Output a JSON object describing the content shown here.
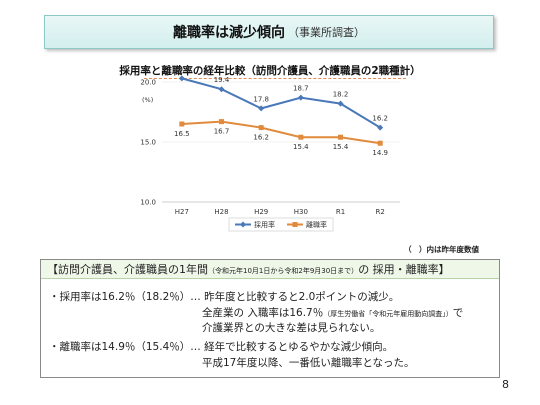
{
  "title": {
    "main": "離職率は減少傾向",
    "sub": "（事業所調査）"
  },
  "chart_title": "採用率と離職率の経年比較（訪問介護員、介護職員の2職種計）",
  "chart_data": {
    "type": "line",
    "categories": [
      "H27",
      "H28",
      "H29",
      "H30",
      "R1",
      "R2"
    ],
    "ylabel": "(%)",
    "ylim": [
      10,
      20
    ],
    "yticks": [
      "10.0",
      "15.0",
      "20.0"
    ],
    "series": [
      {
        "name": "採用率",
        "color": "#4a78b8",
        "values": [
          20.3,
          19.4,
          17.8,
          18.7,
          18.2,
          16.2
        ]
      },
      {
        "name": "離職率",
        "color": "#e08a3c",
        "values": [
          16.5,
          16.7,
          16.2,
          15.4,
          15.4,
          14.9
        ]
      }
    ],
    "legend": "bottom"
  },
  "note": "（　）内は昨年度数値",
  "panel": {
    "header_a": "【訪問介護員、介護職員の1年間",
    "header_small": "（令和元年10月1日から令和2年9月30日まで）",
    "header_b": "の 採用・離職率】",
    "hire_line1": "・採用率は16.2％（18.2％）… 昨年度と比較すると2.0ポイントの減少。",
    "hire_line2a": "全産業の 入職率は16.7％",
    "hire_line2_small": "（厚生労働省「令和元年雇用動向調査」）",
    "hire_line2b": "で",
    "hire_line3": "介護業界との大きな差は見られない。",
    "leave_line1": "・離職率は14.9％（15.4％）… 経年で比較するとゆるやかな減少傾向。",
    "leave_line2": "平成17年度以降、一番低い離職率となった。"
  },
  "page_number": "8"
}
